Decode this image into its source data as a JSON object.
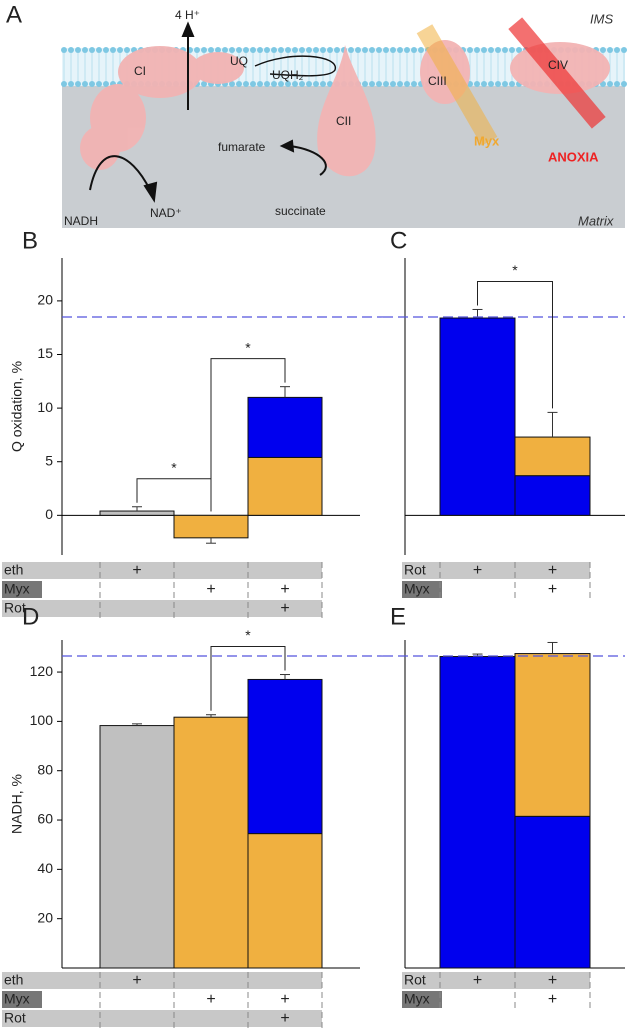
{
  "diagram": {
    "panel_label": "A",
    "ims": "IMS",
    "matrix": "Matrix",
    "protons": "4 H⁺",
    "ci": "CI",
    "uq": "UQ",
    "uqh2": "UQH₂",
    "cii": "CII",
    "ciii": "CIII",
    "civ": "CIV",
    "myx": "Myx",
    "anoxia": "ANOXIA",
    "fumarate": "fumarate",
    "succinate": "succinate",
    "nadh": "NADH",
    "nad": "NAD⁺"
  },
  "chart_data": [
    {
      "type": "bar",
      "panel_label": "B",
      "y_label": "Q oxidation, %",
      "ylim": [
        -3.7,
        24
      ],
      "yticks": [
        0,
        5,
        10,
        15,
        20
      ],
      "reference_line": 18.5,
      "series": [
        {
          "name": "eth",
          "color": "#c0c0c0",
          "values": [
            0.4,
            null,
            null
          ]
        },
        {
          "name": "Myx",
          "color": "#f0b040",
          "values": [
            null,
            -2.1,
            5.4
          ]
        },
        {
          "name": "Rot",
          "color": "#0000ee",
          "values": [
            null,
            null,
            5.6
          ]
        }
      ],
      "errors": [
        0.4,
        0.5,
        1.0
      ],
      "treatments": [
        [
          "+",
          null,
          null
        ],
        [
          null,
          "+",
          "+"
        ],
        [
          null,
          null,
          "+"
        ]
      ],
      "annotations": [
        "*",
        "*"
      ]
    },
    {
      "type": "bar",
      "panel_label": "C",
      "ylim": [
        -3.7,
        24
      ],
      "reference_line": 18.5,
      "series": [
        {
          "name": "Rot",
          "color": "#0000ee",
          "values": [
            18.4,
            3.7
          ]
        },
        {
          "name": "Myx",
          "color": "#f0b040",
          "values": [
            null,
            3.6
          ]
        }
      ],
      "errors": [
        0.8,
        2.3
      ],
      "treatments": [
        [
          "+",
          "+"
        ],
        [
          null,
          "+"
        ]
      ],
      "annotations": [
        "*"
      ]
    },
    {
      "type": "bar",
      "panel_label": "D",
      "y_label": "NADH, %",
      "ylim": [
        0,
        133
      ],
      "yticks": [
        20,
        40,
        60,
        80,
        100,
        120
      ],
      "reference_line": 126.5,
      "series": [
        {
          "name": "eth",
          "color": "#c0c0c0",
          "values": [
            98.3,
            null,
            null
          ]
        },
        {
          "name": "Myx",
          "color": "#f0b040",
          "values": [
            null,
            101.7,
            54.5
          ]
        },
        {
          "name": "Rot",
          "color": "#0000ee",
          "values": [
            null,
            null,
            62.5
          ]
        }
      ],
      "errors": [
        0.7,
        1.0,
        2.0
      ],
      "treatments": [
        [
          "+",
          null,
          null
        ],
        [
          null,
          "+",
          "+"
        ],
        [
          null,
          null,
          "+"
        ]
      ],
      "annotations": [
        "*"
      ]
    },
    {
      "type": "bar",
      "panel_label": "E",
      "ylim": [
        0,
        133
      ],
      "reference_line": 126.5,
      "series": [
        {
          "name": "Rot",
          "color": "#0000ee",
          "values": [
            126.3,
            61.5
          ]
        },
        {
          "name": "Myx",
          "color": "#f0b040",
          "values": [
            null,
            66.0
          ]
        }
      ],
      "errors": [
        1.0,
        4.5
      ],
      "treatments": [
        [
          "+",
          "+"
        ],
        [
          null,
          "+"
        ]
      ]
    }
  ]
}
